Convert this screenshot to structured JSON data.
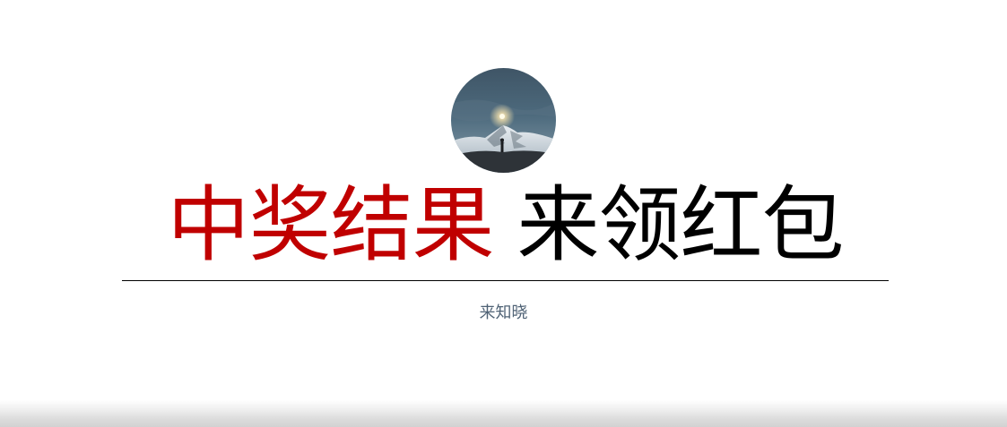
{
  "article": {
    "title_highlight": "中奖结果",
    "title_rest": "来领红包",
    "author": "来知晓"
  },
  "avatar": {
    "icon": "mountain-night-photo"
  },
  "colors": {
    "highlight": "#c00000",
    "title": "#000000",
    "author": "#4f6275",
    "divider": "#000000"
  }
}
